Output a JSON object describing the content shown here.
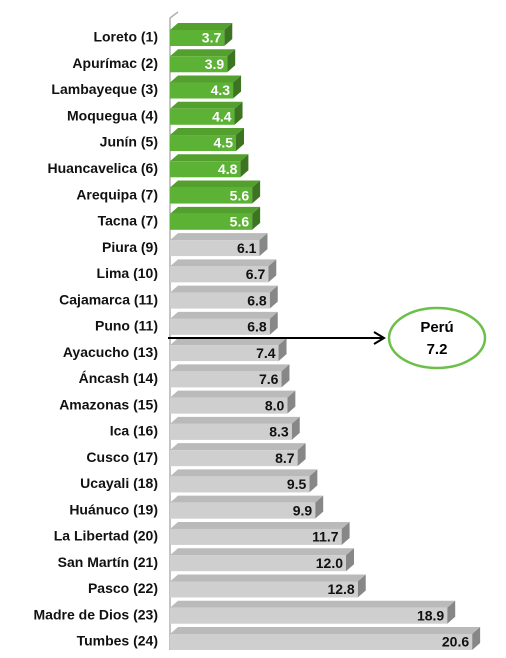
{
  "chart_data": {
    "type": "bar",
    "orientation": "horizontal",
    "categories": [
      "Loreto (1)",
      "Apurímac (2)",
      "Lambayeque (3)",
      "Moquegua (4)",
      "Junín (5)",
      "Huancavelica (6)",
      "Arequipa (7)",
      "Tacna (7)",
      "Piura (9)",
      "Lima (10)",
      "Cajamarca (11)",
      "Puno (11)",
      "Ayacucho (13)",
      "Áncash (14)",
      "Amazonas (15)",
      "Ica (16)",
      "Cusco (17)",
      "Ucayali (18)",
      "Huánuco (19)",
      "La Libertad (20)",
      "San Martín (21)",
      "Pasco (22)",
      "Madre de Dios (23)",
      "Tumbes (24)"
    ],
    "values": [
      3.7,
      3.9,
      4.3,
      4.4,
      4.5,
      4.8,
      5.6,
      5.6,
      6.1,
      6.7,
      6.8,
      6.8,
      7.4,
      7.6,
      8.0,
      8.3,
      8.7,
      9.5,
      9.9,
      11.7,
      12.0,
      12.8,
      18.9,
      20.6
    ],
    "value_labels": [
      "3.7",
      "3.9",
      "4.3",
      "4.4",
      "4.5",
      "4.8",
      "5.6",
      "5.6",
      "6.1",
      "6.7",
      "6.8",
      "6.8",
      "7.4",
      "7.6",
      "8.0",
      "8.3",
      "8.7",
      "9.5",
      "9.9",
      "11.7",
      "12.0",
      "12.8",
      "18.9",
      "20.6"
    ],
    "colors": [
      "#5cb234",
      "#5cb234",
      "#5cb234",
      "#5cb234",
      "#5cb234",
      "#5cb234",
      "#5cb234",
      "#5cb234",
      "#cfcfcf",
      "#cfcfcf",
      "#cfcfcf",
      "#cfcfcf",
      "#cfcfcf",
      "#cfcfcf",
      "#cfcfcf",
      "#cfcfcf",
      "#cfcfcf",
      "#cfcfcf",
      "#cfcfcf",
      "#cfcfcf",
      "#cfcfcf",
      "#cfcfcf",
      "#cfcfcf",
      "#cfcfcf"
    ],
    "xlim": [
      0,
      21
    ],
    "annotation": {
      "label": "Perú",
      "value": 7.2
    }
  }
}
